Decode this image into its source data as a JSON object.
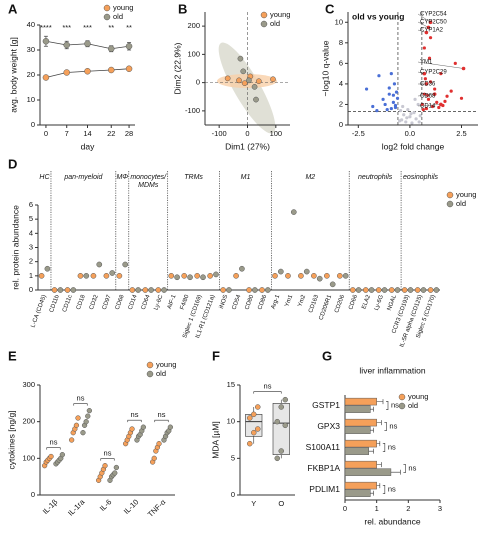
{
  "chart_data": [
    {
      "type": "line",
      "panel": "A",
      "ylabel": "avg. body weight [g]",
      "xlabel": "day",
      "x": [
        0,
        7,
        14,
        22,
        28
      ],
      "xlim": [
        -2,
        30
      ],
      "xticks": [
        0,
        7,
        14,
        22,
        28
      ],
      "ylim": [
        0,
        40
      ],
      "yticks": [
        0,
        10,
        20,
        30,
        40
      ],
      "legend": "upper right",
      "series": [
        {
          "name": "young",
          "color": "#f5a05a",
          "values": [
            19,
            21,
            21.5,
            22,
            22.5
          ],
          "errors": [
            0.8,
            0.6,
            0.6,
            0.8,
            0.8
          ]
        },
        {
          "name": "old",
          "color": "#9a9a8a",
          "values": [
            33.5,
            32,
            32.5,
            30.5,
            31.5
          ],
          "errors": [
            2,
            1.5,
            1.2,
            1.2,
            1.5
          ]
        }
      ],
      "annotations": [
        "****",
        "***",
        "***",
        "**",
        "**"
      ]
    },
    {
      "type": "scatter",
      "panel": "B",
      "xlabel": "Dim1 (27%)",
      "ylabel": "Dim2 (22.9%)",
      "xlim": [
        -150,
        150
      ],
      "xticks": [
        -100,
        0,
        100
      ],
      "ylim": [
        -150,
        250
      ],
      "yticks": [
        -100,
        0,
        100,
        200
      ],
      "legend": "upper right",
      "series": [
        {
          "name": "young",
          "color": "#f5a05a",
          "x": [
            -70,
            -30,
            10,
            40,
            90,
            -10
          ],
          "values": [
            15,
            8,
            22,
            5,
            12,
            -2
          ]
        },
        {
          "name": "old",
          "color": "#9a9a8a",
          "x": [
            -15,
            25,
            30,
            -25,
            5
          ],
          "values": [
            40,
            -15,
            -60,
            85,
            8
          ]
        }
      ]
    },
    {
      "type": "scatter",
      "panel": "C",
      "title": "old vs young",
      "xlabel": "log2 fold change",
      "ylabel": "−log10 q-value",
      "xlim": [
        -3,
        3.3
      ],
      "xticks": [
        -2.5,
        {
          "value": 0,
          "label": "0.0"
        },
        2.5
      ],
      "ylim": [
        0,
        11
      ],
      "yticks": [
        0,
        2,
        4,
        6,
        8,
        10
      ],
      "thresholds": {
        "x": [
          -0.58,
          0.58
        ],
        "y": [
          1.3
        ]
      },
      "series": [
        {
          "color": "#c8c8d2",
          "x": [
            -0.4,
            -0.3,
            -0.2,
            -0.1,
            0,
            0.1,
            0.2,
            0.3,
            0.4,
            -0.5,
            0.5,
            -0.35,
            0.25,
            -0.15,
            0.05,
            0.45,
            -0.45
          ],
          "values": [
            0.5,
            1.0,
            0.3,
            1.5,
            0.8,
            0.2,
            1.2,
            0.6,
            2.0,
            0.4,
            0.9,
            1.8,
            2.5,
            0.7,
            1.1,
            0.3,
            1.4
          ]
        },
        {
          "color": "#4a6fd6",
          "x": [
            -2.1,
            -1.8,
            -1.5,
            -1.3,
            -1.2,
            -1.0,
            -0.9,
            -0.8,
            -0.7,
            -0.65,
            -0.9,
            -1.1,
            -0.75,
            -0.6,
            -1.6,
            -0.7,
            -0.8,
            -1.0
          ],
          "values": [
            3.5,
            1.8,
            4.8,
            2.5,
            2.0,
            3.0,
            1.6,
            2.2,
            1.9,
            3.2,
            5.0,
            1.5,
            4.0,
            2.6,
            1.4,
            1.7,
            2.9,
            3.6
          ]
        },
        {
          "color": "#e03030",
          "x": [
            0.6,
            0.7,
            0.8,
            0.9,
            1.0,
            1.1,
            1.2,
            1.3,
            1.5,
            1.6,
            1.8,
            2.0,
            2.2,
            0.65,
            0.75,
            0.85,
            0.95,
            1.4,
            1.7,
            2.5,
            0.7,
            1.0
          ],
          "values": [
            2.0,
            3.0,
            1.6,
            2.5,
            4.2,
            1.8,
            3.5,
            2.2,
            5.0,
            1.9,
            2.8,
            3.3,
            6.0,
            1.5,
            4.5,
            2.9,
            6.5,
            1.7,
            2.3,
            2.6,
            7.5,
            8.5
          ]
        }
      ],
      "point_labels": [
        {
          "label": "CYP2C54",
          "x": 1.0,
          "y": 10.0
        },
        {
          "label": "CYP2C50",
          "x": 0.9,
          "y": 9.5
        },
        {
          "label": "CYP1A2",
          "x": 0.8,
          "y": 9.0
        },
        {
          "label": "YM1",
          "x": 2.6,
          "y": 5.5
        },
        {
          "label": "CYP2C29",
          "x": 0.7,
          "y": 5.0
        },
        {
          "label": "CD36",
          "x": 0.8,
          "y": 4.0
        },
        {
          "label": "CD68",
          "x": 1.2,
          "y": 3.0
        },
        {
          "label": "CD14",
          "x": 1.5,
          "y": 2.0
        }
      ]
    },
    {
      "type": "dot",
      "panel": "D",
      "ylabel": "rel. protein abundance",
      "ylim": [
        0,
        6
      ],
      "yticks": [
        0,
        1,
        2,
        3,
        4,
        5,
        6
      ],
      "legend": "upper right",
      "groups": [
        {
          "label": "HC",
          "categories": [
            "L-CA (CD45)"
          ]
        },
        {
          "label": "pan-myeloid",
          "categories": [
            "CD11b",
            "CD11c",
            "CD18",
            "CD32",
            "CD97"
          ]
        },
        {
          "label": "MΦ",
          "categories": [
            "CD68"
          ]
        },
        {
          "label": [
            "monocytes/",
            "MDMs"
          ],
          "categories": [
            "CD14",
            "CD64",
            "Ly-6C"
          ]
        },
        {
          "label": "TRMs",
          "categories": [
            "AIF-1",
            "F4/80",
            "Siglec 1 (CD169)",
            "IL1-R1 (CD121a)"
          ]
        },
        {
          "label": "M1",
          "categories": [
            "iNOS",
            "CD54",
            "CD80",
            "CD86"
          ]
        },
        {
          "label": "M2",
          "categories": [
            "Arg-1",
            "Ym1",
            "Ym2",
            "CD163",
            "CD206R1",
            "CD206"
          ]
        },
        {
          "label": "neutrophils",
          "categories": [
            "CD66",
            "ELA2",
            "Ly-6G",
            "NGAL"
          ]
        },
        {
          "label": "eosinophils",
          "categories": [
            "CCR3 (CD193)",
            "IL-5R alpha (CD125)",
            "Siglec 5 (CD170)"
          ]
        }
      ],
      "series": [
        {
          "name": "young",
          "color": "#f5a05a",
          "values": [
            1,
            0,
            0,
            1,
            1,
            1,
            1,
            0,
            0,
            0,
            1,
            1,
            1,
            1,
            0,
            1,
            0,
            0,
            1,
            1,
            1,
            1,
            1,
            1,
            0,
            0,
            0,
            0,
            0,
            0,
            0
          ]
        },
        {
          "name": "old",
          "color": "#9a9a8a",
          "values": [
            1.5,
            0,
            0,
            1,
            1.8,
            1.2,
            1.8,
            0,
            0,
            0,
            0.9,
            0.9,
            0.9,
            1.1,
            0,
            1.5,
            0,
            0,
            1.3,
            5.5,
            1.3,
            0.8,
            0.4,
            1,
            0,
            0,
            0,
            0,
            0,
            0,
            0
          ]
        }
      ]
    },
    {
      "type": "strip",
      "panel": "E",
      "ylabel": "cytokines [ng/g]",
      "ylim": [
        0,
        300
      ],
      "yticks": [
        0,
        100,
        200,
        300
      ],
      "legend": "upper right",
      "categories": [
        "IL-1β",
        "IL-1ra",
        "IL-6",
        "IL-10",
        "TNF-α"
      ],
      "series": [
        {
          "name": "young",
          "color": "#f5a05a",
          "values": [
            [
              80,
              90,
              95,
              100,
              105
            ],
            [
              150,
              170,
              180,
              190,
              210
            ],
            [
              40,
              50,
              60,
              70,
              80
            ],
            [
              140,
              150,
              160,
              170,
              180
            ],
            [
              90,
              100,
              120,
              130,
              140
            ]
          ]
        },
        {
          "name": "old",
          "color": "#9a9a8a",
          "values": [
            [
              85,
              90,
              95,
              100,
              110
            ],
            [
              170,
              190,
              200,
              215,
              230
            ],
            [
              40,
              50,
              55,
              60,
              75
            ],
            [
              150,
              160,
              165,
              175,
              185
            ],
            [
              150,
              160,
              170,
              175,
              185
            ]
          ]
        }
      ],
      "annotations": [
        "ns",
        "ns",
        "ns",
        "ns",
        "ns"
      ]
    },
    {
      "type": "box",
      "panel": "F",
      "ylabel": "MDA [µM]",
      "ylim": [
        0,
        15
      ],
      "yticks": [
        0,
        5,
        10,
        15
      ],
      "categories": [
        "Y",
        "O"
      ],
      "colors": [
        "#f5a05a",
        "#9a9a8a"
      ],
      "values": [
        [
          7,
          8.5,
          9,
          10.5,
          11,
          12
        ],
        [
          5,
          6,
          9.5,
          10,
          12,
          13
        ]
      ],
      "boxes": [
        {
          "min": 7,
          "q1": 8,
          "median": 10,
          "q3": 11,
          "max": 12
        },
        {
          "min": 5,
          "q1": 5.5,
          "median": 9.8,
          "q3": 12.5,
          "max": 13
        }
      ],
      "annotation": "ns"
    },
    {
      "type": "barh",
      "panel": "G",
      "title": "liver inflammation",
      "xlabel": "rel. abundance",
      "xlim": [
        0,
        3
      ],
      "xticks": [
        0,
        1,
        2,
        3
      ],
      "legend": "upper right",
      "categories": [
        "GSTP1",
        "GPX3",
        "S100A11",
        "FKBP1A",
        "PDLIM1"
      ],
      "series": [
        {
          "name": "young",
          "color": "#f5a05a",
          "values": [
            1,
            1,
            1,
            1,
            1
          ],
          "errors": [
            0.2,
            0.15,
            0.1,
            0.15,
            0.1
          ]
        },
        {
          "name": "old",
          "color": "#9a9a8a",
          "values": [
            0.8,
            0.8,
            0.75,
            1.45,
            0.8
          ],
          "errors": [
            0.1,
            0.1,
            0.15,
            0.3,
            0.1
          ]
        }
      ],
      "annotations": [
        "ns",
        "ns",
        "ns",
        "ns",
        "ns"
      ]
    }
  ]
}
